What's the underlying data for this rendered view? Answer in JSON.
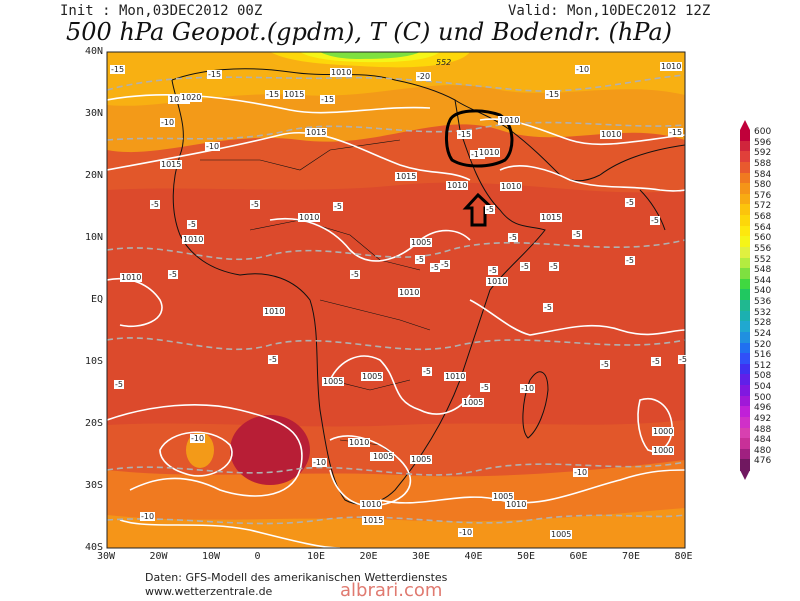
{
  "header": {
    "init": "Init : Mon,03DEC2012 00Z",
    "valid": "Valid: Mon,10DEC2012 12Z",
    "title": "500 hPa Geopot.(gpdm), T (C) und Bodendr. (hPa)"
  },
  "axes": {
    "lat_labels": [
      "40N",
      "30N",
      "20N",
      "10N",
      "EQ",
      "10S",
      "20S",
      "30S",
      "40S"
    ],
    "lon_labels": [
      "30W",
      "20W",
      "10W",
      "0",
      "10E",
      "20E",
      "30E",
      "40E",
      "50E",
      "60E",
      "70E",
      "80E"
    ]
  },
  "colorbar": {
    "labels": [
      "600",
      "596",
      "592",
      "588",
      "584",
      "580",
      "576",
      "572",
      "568",
      "564",
      "560",
      "556",
      "552",
      "548",
      "544",
      "540",
      "536",
      "532",
      "528",
      "524",
      "520",
      "516",
      "512",
      "508",
      "504",
      "500",
      "496",
      "492",
      "488",
      "484",
      "480",
      "476"
    ],
    "colors": [
      "#c0003a",
      "#d0253c",
      "#e0403a",
      "#e85a2e",
      "#f07a20",
      "#f59518",
      "#f8ab12",
      "#fcc40c",
      "#fdd70a",
      "#fde80e",
      "#f5f518",
      "#e0f040",
      "#b4ec40",
      "#7ee040",
      "#40d840",
      "#20c860",
      "#20b890",
      "#1cb0b0",
      "#20a8d0",
      "#2090e0",
      "#2070f0",
      "#3050f8",
      "#4030f0",
      "#6020e8",
      "#8018e0",
      "#a018d8",
      "#c020d8",
      "#d030c8",
      "#d840b0",
      "#c83098",
      "#a02080",
      "#701860"
    ]
  },
  "pressure_labels": [
    "1010",
    "1020",
    "1015",
    "1015",
    "1015",
    "1015",
    "1010",
    "1010",
    "1010",
    "1010",
    "1005",
    "1010",
    "1010",
    "1010",
    "1010",
    "1010",
    "1010",
    "1005",
    "1005",
    "1010",
    "1005",
    "1010",
    "1005",
    "1005",
    "1005",
    "1000",
    "1000",
    "1020",
    "1005",
    "1010",
    "1010",
    "1015",
    "1005",
    "1010",
    "1015",
    "552"
  ],
  "temp_labels": [
    "-15",
    "-20",
    "-15",
    "-15",
    "-15",
    "-10",
    "-15",
    "-15",
    "-10",
    "-10",
    "-10",
    "-15",
    "-5",
    "-5",
    "-5",
    "-5",
    "-5",
    "-5",
    "-5",
    "-5",
    "-5",
    "-5",
    "-5",
    "-5",
    "-5",
    "-5",
    "-5",
    "-5",
    "-5",
    "-5",
    "-5",
    "-5",
    "-5",
    "-5",
    "-5",
    "-5",
    "-5",
    "-5",
    "-10",
    "-10",
    "-10",
    "-10",
    "-10",
    "-10"
  ],
  "annotations": {
    "circle_label": "1010"
  },
  "credits": {
    "line1": "Daten: GFS-Modell des amerikanischen Wetterdienstes",
    "line2": "www.wetterzentrale.de",
    "watermark": "albrari.com"
  }
}
